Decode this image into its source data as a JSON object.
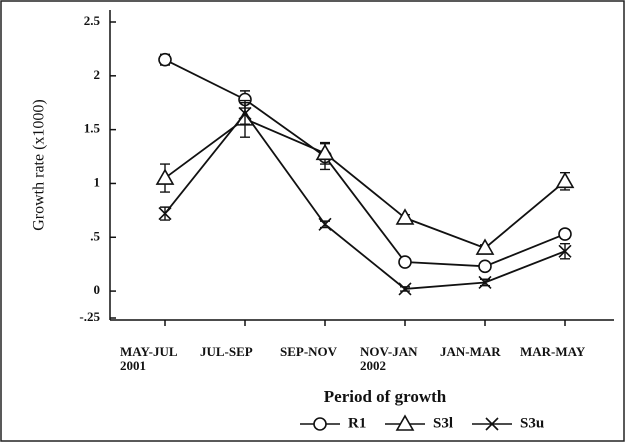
{
  "chart_data": {
    "type": "line",
    "y_label": "Growth rate (x1000)",
    "x_label": "Period of growth",
    "categories": [
      "MAY-JUL\n2001",
      "JUL-SEP",
      "SEP-NOV",
      "NOV-JAN\n2002",
      "JAN-MAR",
      "MAR-MAY"
    ],
    "ylim": [
      -0.25,
      2.5
    ],
    "yticks": [
      2.5,
      2,
      1.5,
      1,
      {
        "value": 0.5,
        "label": ".5"
      },
      0,
      {
        "value": -0.25,
        "label": "-.25"
      }
    ],
    "legend": "bottom",
    "series": [
      {
        "name": "R1",
        "marker": "circle",
        "color": "#111",
        "values": [
          2.15,
          1.78,
          1.25,
          0.27,
          0.23,
          0.53
        ],
        "errors": [
          0.05,
          0.08,
          0.12,
          0.03,
          0.03,
          0.04
        ]
      },
      {
        "name": "S3l",
        "marker": "triangle",
        "color": "#111",
        "values": [
          1.05,
          1.6,
          1.28,
          0.68,
          0.4,
          1.02
        ],
        "errors": [
          0.13,
          0.17,
          0.1,
          0.03,
          0.03,
          0.08
        ]
      },
      {
        "name": "S3u",
        "marker": "cross",
        "color": "#111",
        "values": [
          0.72,
          1.65,
          0.62,
          0.02,
          0.08,
          0.37
        ],
        "errors": [
          0.06,
          0.1,
          0.03,
          0.02,
          0.03,
          0.07
        ]
      }
    ]
  }
}
